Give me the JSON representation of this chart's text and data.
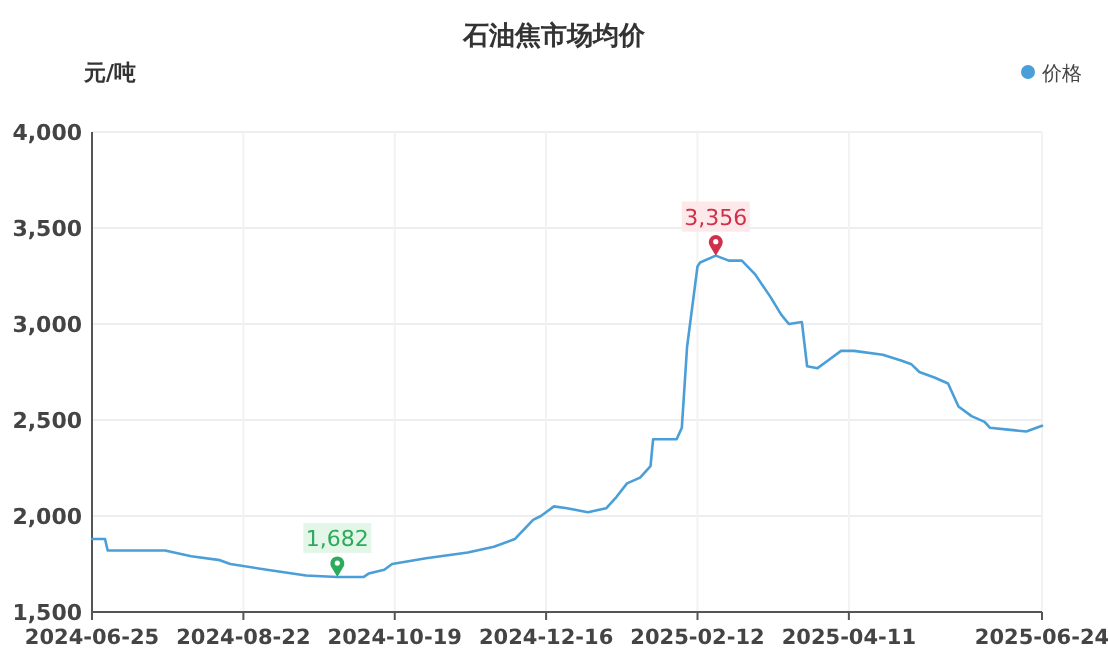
{
  "chart_data": {
    "type": "line",
    "title": "石油焦市场均价",
    "ylabel": "元/吨",
    "x": [
      "2024-06-25",
      "2024-06-30",
      "2024-07-01",
      "2024-07-23",
      "2024-08-02",
      "2024-08-13",
      "2024-08-17",
      "2024-08-31",
      "2024-09-15",
      "2024-09-27",
      "2024-10-07",
      "2024-10-09",
      "2024-10-15",
      "2024-10-18",
      "2024-10-31",
      "2024-11-16",
      "2024-11-26",
      "2024-12-04",
      "2024-12-11",
      "2024-12-14",
      "2024-12-19",
      "2024-12-24",
      "2025-01-01",
      "2025-01-08",
      "2025-01-12",
      "2025-01-16",
      "2025-01-21",
      "2025-01-25",
      "2025-01-26",
      "2025-02-04",
      "2025-02-06",
      "2025-02-08",
      "2025-02-12",
      "2025-02-13",
      "2025-02-19",
      "2025-02-24",
      "2025-03-01",
      "2025-03-06",
      "2025-03-12",
      "2025-03-16",
      "2025-03-19",
      "2025-03-24",
      "2025-03-26",
      "2025-03-30",
      "2025-04-03",
      "2025-04-08",
      "2025-04-13",
      "2025-04-24",
      "2025-05-01",
      "2025-05-05",
      "2025-05-08",
      "2025-05-14",
      "2025-05-19",
      "2025-05-23",
      "2025-05-28",
      "2025-06-02",
      "2025-06-04",
      "2025-06-11",
      "2025-06-18",
      "2025-06-24"
    ],
    "series": [
      {
        "name": "价格",
        "color": "#4a9fd8",
        "values": [
          1880,
          1880,
          1820,
          1820,
          1790,
          1770,
          1750,
          1720,
          1690,
          1682,
          1682,
          1700,
          1720,
          1750,
          1780,
          1810,
          1840,
          1880,
          1980,
          2000,
          2050,
          2040,
          2020,
          2040,
          2100,
          2170,
          2200,
          2260,
          2400,
          2400,
          2460,
          2880,
          3300,
          3320,
          3356,
          3330,
          3330,
          3260,
          3140,
          3050,
          3000,
          3010,
          2780,
          2770,
          2810,
          2860,
          2860,
          2840,
          2810,
          2790,
          2750,
          2720,
          2690,
          2570,
          2520,
          2490,
          2460,
          2450,
          2440,
          2470
        ]
      }
    ],
    "xlim": [
      "2024-06-25",
      "2025-06-24"
    ],
    "xticks": [
      "2024-06-25",
      "2024-08-22",
      "2024-10-19",
      "2024-12-16",
      "2025-02-12",
      "2025-04-11",
      "2025-06-24"
    ],
    "ylim": [
      1500,
      4000
    ],
    "yticks": [
      {
        "value": 1500,
        "label": "1,500"
      },
      {
        "value": 2000,
        "label": "2,000"
      },
      {
        "value": 2500,
        "label": "2,500"
      },
      {
        "value": 3000,
        "label": "3,000"
      },
      {
        "value": 3500,
        "label": "3,500"
      },
      {
        "value": 4000,
        "label": "4,000"
      }
    ],
    "annotations": [
      {
        "text": "3,356",
        "x": "2025-02-19",
        "y": 3356
      },
      {
        "text": "1,682",
        "x": "2024-09-27",
        "y": 1682
      }
    ],
    "grid": true,
    "legend": "top right",
    "marker": "none",
    "line_style": "solid"
  }
}
